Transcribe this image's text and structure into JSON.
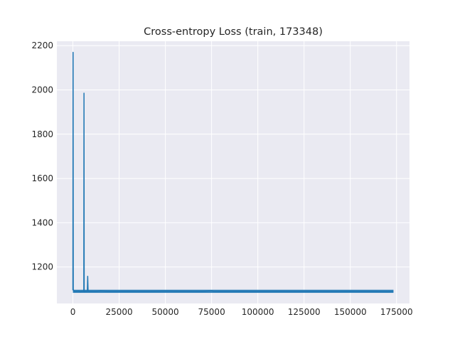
{
  "chart_data": {
    "type": "line",
    "title": "Cross-entropy Loss (train, 173348)",
    "xlabel": "",
    "ylabel": "",
    "xlim": [
      -8667,
      182015
    ],
    "ylim": [
      1035,
      2220
    ],
    "grid": true,
    "legend": "none",
    "x_ticks": [
      0,
      25000,
      50000,
      75000,
      100000,
      125000,
      150000,
      175000
    ],
    "x_tick_labels": [
      "0",
      "25000",
      "50000",
      "75000",
      "100000",
      "125000",
      "150000",
      "175000"
    ],
    "y_ticks": [
      1200,
      1400,
      1600,
      1800,
      2000,
      2200
    ],
    "y_tick_labels": [
      "1200",
      "1400",
      "1600",
      "1800",
      "2000",
      "2200"
    ],
    "series": [
      {
        "color": "#1f77b4",
        "x": [
          0,
          100,
          200,
          400,
          700,
          1000,
          2000,
          3000,
          4000,
          5000,
          5900,
          6000,
          6100,
          6300,
          7000,
          7800,
          8000,
          8200,
          8600,
          10000,
          12000,
          15000,
          20000,
          30000,
          40000,
          50000,
          60000,
          70000,
          75000,
          76000,
          80000,
          90000,
          100000,
          110000,
          120000,
          130000,
          140000,
          150000,
          160000,
          170000,
          173348
        ],
        "y": [
          1095,
          2170,
          1100,
          1090,
          1092,
          1089,
          1090,
          1091,
          1088,
          1090,
          1089,
          1985,
          1092,
          1088,
          1090,
          1089,
          1158,
          1093,
          1089,
          1090,
          1089,
          1092,
          1089,
          1090,
          1089,
          1091,
          1090,
          1089,
          1093,
          1090,
          1089,
          1090,
          1089,
          1090,
          1089,
          1090,
          1089,
          1090,
          1089,
          1088,
          1089
        ],
        "band_low": 1083,
        "band_high": 1097
      }
    ]
  }
}
